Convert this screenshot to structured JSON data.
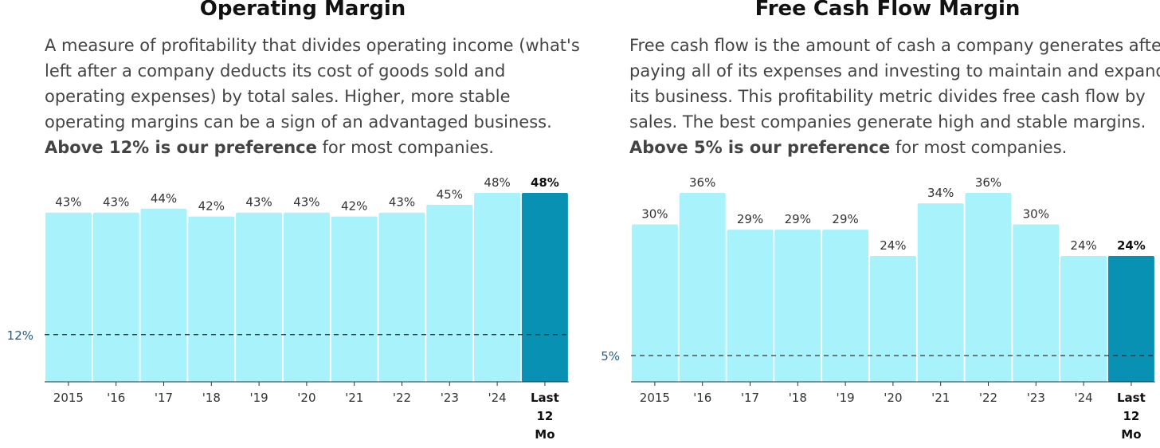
{
  "colors": {
    "bar": "#a8f2fb",
    "highlight": "#0891b2",
    "axis": "#333333",
    "reference": "#222222"
  },
  "panels": [
    {
      "title": "Operating Margin",
      "desc_pre": "A measure of profitability that divides operating income (what's left after a company deducts its cost of goods sold and operating expenses) by total sales. Higher, more stable operating margins can be a sign of an advantaged business. ",
      "desc_bold": "Above 12% is our preference",
      "desc_post": " for most companies."
    },
    {
      "title": "Free Cash Flow Margin",
      "desc_pre": "Free cash flow is the amount of cash a company generates after paying all of its expenses and investing to maintain and expand its business. This profitability metric divides free cash flow by sales. The best companies generate high and stable margins. ",
      "desc_bold": "Above 5% is our preference",
      "desc_post": " for most companies."
    }
  ],
  "chart_data": [
    {
      "type": "bar",
      "title": "Operating Margin",
      "categories": [
        "2015",
        "'16",
        "'17",
        "'18",
        "'19",
        "'20",
        "'21",
        "'22",
        "'23",
        "'24",
        "Last 12 Mo"
      ],
      "values": [
        43,
        43,
        44,
        42,
        43,
        43,
        42,
        43,
        45,
        48,
        48
      ],
      "labels": [
        "43%",
        "43%",
        "44%",
        "42%",
        "43%",
        "43%",
        "42%",
        "43%",
        "45%",
        "48%",
        "48%"
      ],
      "highlight_index": 10,
      "reference": {
        "value": 12,
        "label": "12%"
      },
      "ylim": [
        0,
        50
      ],
      "unit": "%"
    },
    {
      "type": "bar",
      "title": "Free Cash Flow Margin",
      "categories": [
        "2015",
        "'16",
        "'17",
        "'18",
        "'19",
        "'20",
        "'21",
        "'22",
        "'23",
        "'24",
        "Last 12 Mo"
      ],
      "values": [
        30,
        36,
        29,
        29,
        29,
        24,
        34,
        36,
        30,
        24,
        24
      ],
      "labels": [
        "30%",
        "36%",
        "29%",
        "29%",
        "29%",
        "24%",
        "34%",
        "36%",
        "30%",
        "24%",
        "24%"
      ],
      "highlight_index": 10,
      "reference": {
        "value": 5,
        "label": "5%"
      },
      "ylim": [
        0,
        37
      ],
      "unit": "%"
    }
  ]
}
